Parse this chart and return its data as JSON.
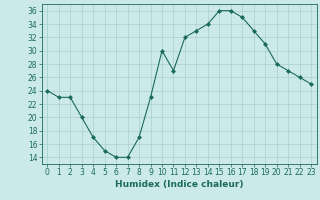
{
  "x": [
    0,
    1,
    2,
    3,
    4,
    5,
    6,
    7,
    8,
    9,
    10,
    11,
    12,
    13,
    14,
    15,
    16,
    17,
    18,
    19,
    20,
    21,
    22,
    23
  ],
  "y": [
    24,
    23,
    23,
    20,
    17,
    15,
    14,
    14,
    17,
    23,
    30,
    27,
    32,
    33,
    34,
    36,
    36,
    35,
    33,
    31,
    28,
    27,
    26,
    25
  ],
  "line_color": "#1a6b5a",
  "marker": "D",
  "marker_size": 2.0,
  "bg_color": "#cce9ea",
  "grid_color": "#aacfcf",
  "xlabel": "Humidex (Indice chaleur)",
  "xlim": [
    -0.5,
    23.5
  ],
  "ylim": [
    13,
    37
  ],
  "yticks": [
    14,
    16,
    18,
    20,
    22,
    24,
    26,
    28,
    30,
    32,
    34,
    36
  ],
  "xticks": [
    0,
    1,
    2,
    3,
    4,
    5,
    6,
    7,
    8,
    9,
    10,
    11,
    12,
    13,
    14,
    15,
    16,
    17,
    18,
    19,
    20,
    21,
    22,
    23
  ],
  "tick_label_size": 5.5,
  "xlabel_size": 6.5,
  "xlabel_weight": "bold"
}
